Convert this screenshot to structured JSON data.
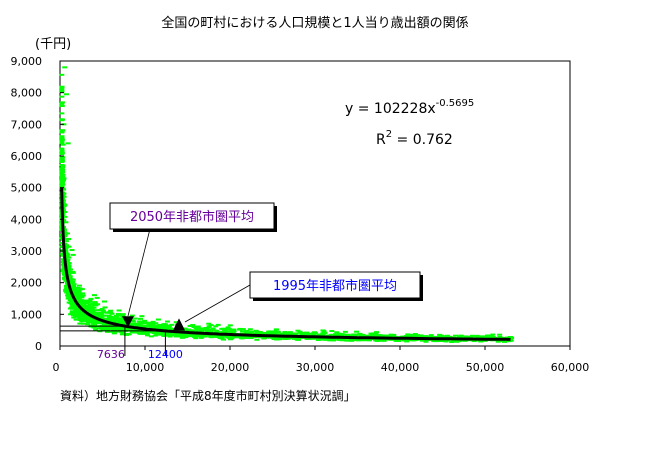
{
  "chart_data": {
    "type": "scatter",
    "title": "全国の町村における人口規模と1人当り歳出額の関係",
    "ylabel": "(千円)",
    "xlabel": "",
    "xlim": [
      0,
      60000
    ],
    "ylim": [
      0,
      9000
    ],
    "x_ticks": [
      0,
      10000,
      20000,
      30000,
      40000,
      50000,
      60000
    ],
    "x_tick_labels": [
      "0",
      "10,000",
      "20,000",
      "30,000",
      "40,000",
      "50,000",
      "60,000"
    ],
    "y_ticks": [
      0,
      1000,
      2000,
      3000,
      4000,
      5000,
      6000,
      7000,
      8000,
      9000
    ],
    "y_tick_labels": [
      "0",
      "1,000",
      "2,000",
      "3,000",
      "4,000",
      "5,000",
      "6,000",
      "7,000",
      "8,000",
      "9,000"
    ],
    "grid": false,
    "scatter_color": "#00ff00",
    "trend": {
      "type": "power",
      "a": 102228,
      "b": -0.5695,
      "x_range": [
        200,
        53000
      ],
      "equation_prefix": "y = 102228x",
      "equation_exp": "-0.5695",
      "r2_prefix": "R",
      "r2_sup": "2",
      "r2_value": " = 0.762"
    },
    "annotations": [
      {
        "label": "2050年非都市圏平均",
        "x": 7636,
        "x_label": "7636",
        "color": "#660099",
        "marker": "down-triangle",
        "marker_xy": [
          8000,
          750
        ]
      },
      {
        "label": "1995年非都市圏平均",
        "x": 12400,
        "x_label": "12400",
        "color": "#0000ff",
        "marker": "up-triangle",
        "marker_xy": [
          14000,
          650
        ]
      }
    ],
    "source": "資料）地方財務協会「平成8年度市町村別決算状況調」"
  }
}
